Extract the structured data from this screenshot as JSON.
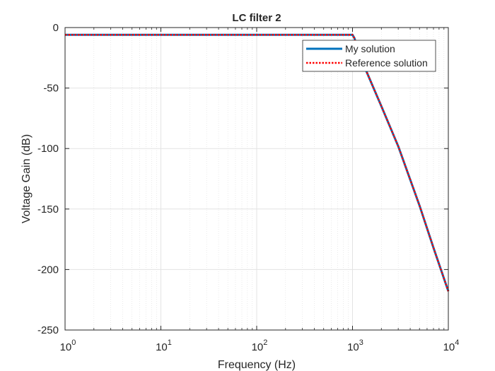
{
  "chart_data": {
    "type": "line",
    "title": "LC filter 2",
    "xlabel": "Frequency (Hz)",
    "ylabel": "Voltage Gain (dB)",
    "xscale": "log",
    "xlim": [
      1,
      10000
    ],
    "ylim": [
      -250,
      0
    ],
    "grid": true,
    "minor_grid": true,
    "x_ticks": [
      1,
      10,
      100,
      1000,
      10000
    ],
    "x_tick_labels": [
      {
        "base": "10",
        "exp": "0"
      },
      {
        "base": "10",
        "exp": "1"
      },
      {
        "base": "10",
        "exp": "2"
      },
      {
        "base": "10",
        "exp": "3"
      },
      {
        "base": "10",
        "exp": "4"
      }
    ],
    "y_ticks": [
      0,
      -50,
      -100,
      -150,
      -200,
      -250
    ],
    "y_tick_labels": [
      "0",
      "-50",
      "-100",
      "-150",
      "-200",
      "-250"
    ],
    "legend_position": "top-right",
    "x": [
      1,
      10,
      100,
      500,
      900,
      1000,
      1050,
      1100,
      1200,
      1500,
      2000,
      3000,
      5000,
      7000,
      10000
    ],
    "series": [
      {
        "name": "My solution",
        "color": "#0072BD",
        "style": "solid",
        "values": [
          -6,
          -6,
          -6,
          -6,
          -6,
          -6,
          -9,
          -15,
          -24,
          -42,
          -65,
          -98,
          -147,
          -182,
          -218
        ]
      },
      {
        "name": "Reference solution",
        "color": "#FF0000",
        "style": "dotted",
        "values": [
          -6,
          -6,
          -6,
          -6,
          -6,
          -6,
          -9,
          -15,
          -24,
          -42,
          -65,
          -98,
          -147,
          -182,
          -218
        ]
      }
    ]
  }
}
